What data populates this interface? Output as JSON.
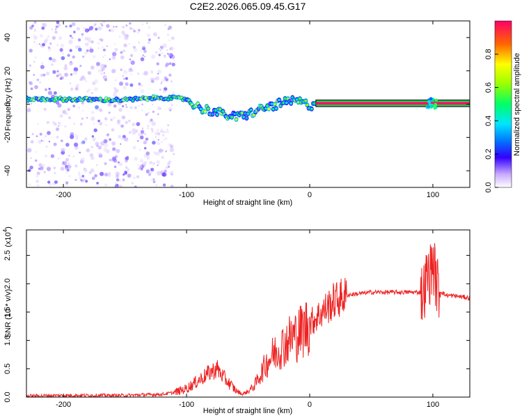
{
  "title": "C2E2.2026.065.09.45.G17",
  "chart_data": [
    {
      "type": "heatmap",
      "name": "spectrogram",
      "xlabel": "Height of straight line (km)",
      "ylabel": "Frequency (Hz)",
      "xlim": [
        -230,
        130
      ],
      "ylim": [
        -50,
        50
      ],
      "xticks": [
        -200,
        -100,
        0,
        100
      ],
      "xtick_labels": [
        "-200",
        "-100",
        "0",
        "100"
      ],
      "yticks": [
        -40,
        -20,
        0,
        20,
        40
      ],
      "ytick_labels": [
        "-40",
        "-20",
        "0",
        "20",
        "40"
      ],
      "colorbar": {
        "label": "Normalized spectral amplitude",
        "range": [
          0,
          1
        ],
        "ticks": [
          0.0,
          0.2,
          0.4,
          0.6,
          0.8
        ],
        "tick_labels": [
          "0.0",
          "0.2",
          "0.4",
          "0.6",
          "0.8"
        ]
      },
      "ridge_centerline": [
        {
          "x": -230,
          "f": 3
        },
        {
          "x": -200,
          "f": 3
        },
        {
          "x": -150,
          "f": 2.5
        },
        {
          "x": -120,
          "f": 4
        },
        {
          "x": -100,
          "f": 3
        },
        {
          "x": -90,
          "f": -2
        },
        {
          "x": -80,
          "f": -4
        },
        {
          "x": -70,
          "f": -6
        },
        {
          "x": -60,
          "f": -8
        },
        {
          "x": -50,
          "f": -6
        },
        {
          "x": -40,
          "f": -3
        },
        {
          "x": -30,
          "f": -1
        },
        {
          "x": -20,
          "f": 1
        },
        {
          "x": -10,
          "f": 2
        },
        {
          "x": 0,
          "f": -1
        },
        {
          "x": 5,
          "f": 0.5
        },
        {
          "x": 50,
          "f": 0.5
        },
        {
          "x": 100,
          "f": 0.5
        },
        {
          "x": 130,
          "f": 0.5
        }
      ],
      "flat_band": {
        "x_start": 5,
        "x_end": 130,
        "f_center": 0.5,
        "f_half_width": 2
      }
    },
    {
      "type": "line",
      "name": "snr",
      "xlabel": "Height of straight line (km)",
      "ylabel": "SNR (10 * v/v)",
      "y_multiplier": "(x10",
      "y_multiplier_exp": "4",
      "xlim": [
        -230,
        130
      ],
      "ylim": [
        0,
        2.95
      ],
      "xticks": [
        -200,
        -100,
        0,
        100
      ],
      "xtick_labels": [
        "-200",
        "-100",
        "0",
        "100"
      ],
      "yticks": [
        0.0,
        0.5,
        1.0,
        1.5,
        2.0,
        2.5
      ],
      "ytick_labels": [
        "0.0",
        "0.5",
        "1.0",
        "1.5",
        "2.0",
        "2.5"
      ],
      "color": "#ee2222",
      "series": [
        {
          "name": "SNR envelope",
          "x": [
            -230,
            -200,
            -150,
            -120,
            -110,
            -100,
            -90,
            -80,
            -75,
            -70,
            -60,
            -55,
            -50,
            -45,
            -40,
            -35,
            -30,
            -25,
            -20,
            -15,
            -10,
            -5,
            0,
            10,
            20,
            30,
            50,
            70,
            90,
            92,
            95,
            98,
            100,
            103,
            105,
            110,
            120,
            130
          ],
          "y": [
            0.02,
            0.03,
            0.03,
            0.05,
            0.08,
            0.15,
            0.3,
            0.45,
            0.5,
            0.35,
            0.12,
            0.05,
            0.1,
            0.2,
            0.4,
            0.6,
            0.75,
            0.85,
            0.95,
            1.05,
            1.1,
            1.2,
            1.3,
            1.5,
            1.7,
            1.8,
            1.85,
            1.85,
            1.85,
            1.8,
            2.1,
            2.2,
            2.4,
            2.0,
            1.9,
            1.8,
            1.78,
            1.75
          ]
        }
      ]
    }
  ]
}
